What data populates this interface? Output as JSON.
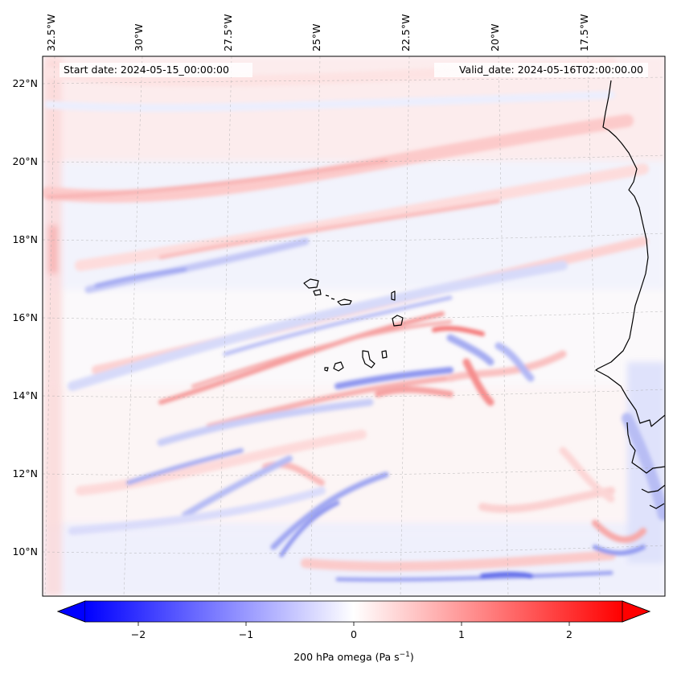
{
  "header": {
    "start_date": "Start date: 2024-05-15_00:00:00",
    "valid_date": "Valid_date: 2024-05-16T02:00:00.00"
  },
  "axes": {
    "lon_labels": [
      "32.5°W",
      "30°W",
      "27.5°W",
      "25°W",
      "22.5°W",
      "20°W",
      "17.5°W"
    ],
    "lat_labels": [
      "22°N",
      "20°N",
      "18°N",
      "16°N",
      "14°N",
      "12°N",
      "10°N"
    ]
  },
  "colorbar": {
    "label": "200 hPa omega (Pa s",
    "label_sup": "−1",
    "label_end": ")",
    "tick_labels": [
      "−2",
      "−1",
      "0",
      "1",
      "2"
    ],
    "colors": {
      "min": "#0000ff",
      "mid": "#ffffff",
      "max": "#ff0000"
    }
  },
  "chart_data": {
    "type": "heatmap",
    "variable": "200 hPa omega",
    "units": "Pa s^-1",
    "value_range": [
      -2.6,
      2.6
    ],
    "colormap": "bwr",
    "extend": "both",
    "map_extent": {
      "lon": [
        -33.0,
        -16.0
      ],
      "lat": [
        8.9,
        22.8
      ]
    },
    "gridlines": true
  }
}
